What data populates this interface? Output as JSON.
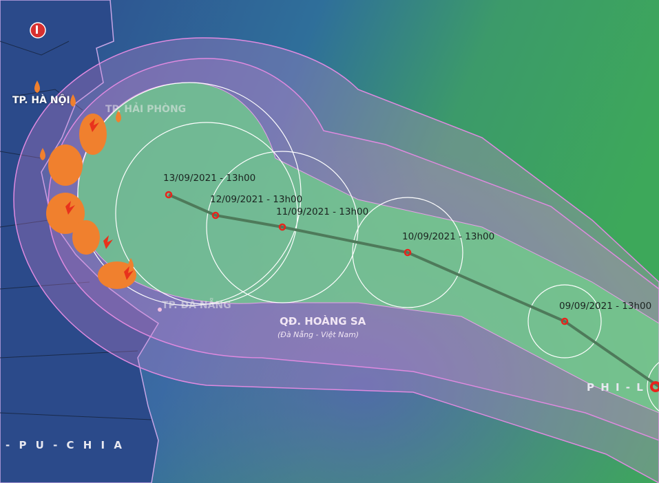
{
  "map": {
    "colors": {
      "sea_blue": "#2b4f8c",
      "sea_green": "#3fa05a",
      "risk_zone": "#d98ad8",
      "cone": "#66c98a",
      "track": "#4e7a5a",
      "storm_icon": "#e8241c",
      "rain_icon": "#f0802e"
    },
    "cities": [
      {
        "name": "TP. HÀ NỘI"
      },
      {
        "name": "TP. HẢI PHÒNG"
      },
      {
        "name": "TP. ĐÀ NẴNG"
      }
    ],
    "islands": {
      "name": "QĐ. HOÀNG SA",
      "sub": "(Đà Nẵng - Việt Nam)"
    },
    "countries": [
      "- P U - C H I A",
      "P H I - L"
    ],
    "forecast_points": [
      {
        "time": "13/09/2021 - 13h00"
      },
      {
        "time": "12/09/2021 - 13h00"
      },
      {
        "time": "11/09/2021 - 13h00"
      },
      {
        "time": "10/09/2021 - 13h00"
      },
      {
        "time": "09/09/2021 - 13h00"
      }
    ],
    "icons": [
      "temperature-icon",
      "rain-drop-icon",
      "lightning-icon",
      "storm-icon"
    ]
  }
}
